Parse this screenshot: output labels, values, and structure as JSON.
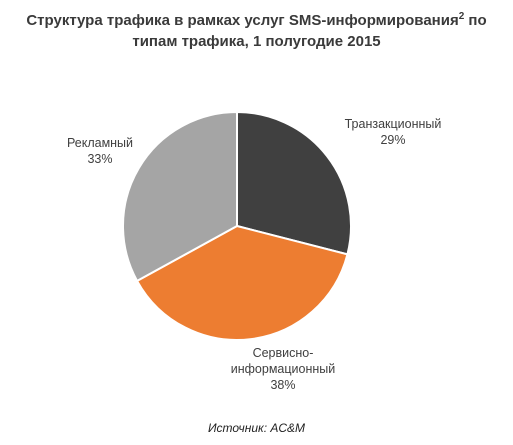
{
  "chart_data": {
    "type": "pie",
    "title": "Структура трафика в рамках услуг SMS-информирования",
    "title_footnote": "2",
    "title_tail": " по типам трафика, 1 полугодие 2015",
    "slices": [
      {
        "label_lines": [
          "Транзакционный"
        ],
        "pct_text": "29%",
        "value": 29,
        "color": "#404040"
      },
      {
        "label_lines": [
          "Сервисно-",
          "информационный"
        ],
        "pct_text": "38%",
        "value": 38,
        "color": "#ed7d31"
      },
      {
        "label_lines": [
          "Рекламный"
        ],
        "pct_text": "33%",
        "value": 33,
        "color": "#a5a5a5"
      }
    ],
    "legend": "none",
    "data_labels": "outside"
  },
  "source": "Источник: AC&M"
}
